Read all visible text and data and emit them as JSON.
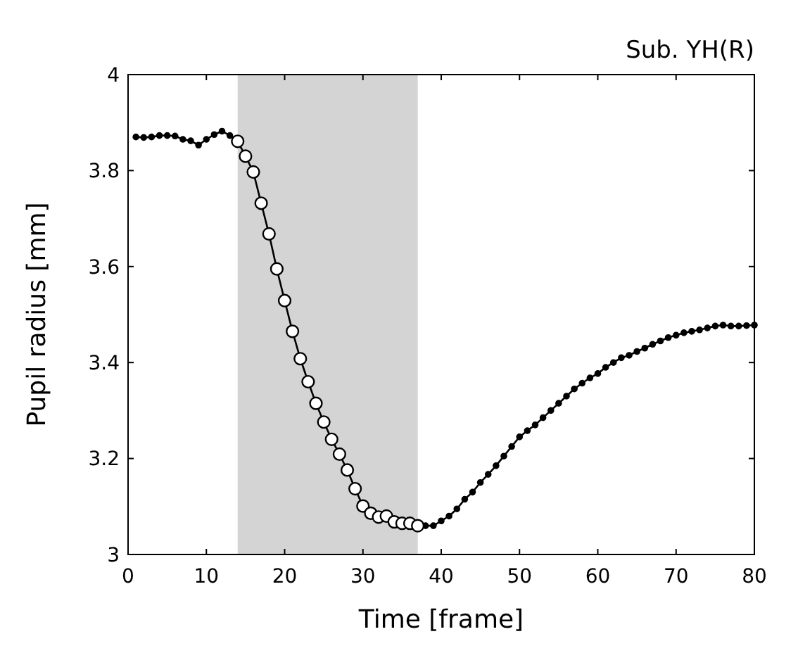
{
  "chart_data": {
    "type": "line",
    "title": "Sub. YH(R)",
    "xlabel": "Time [frame]",
    "ylabel": "Pupil radius [mm]",
    "xlim": [
      0,
      80
    ],
    "xticks": [
      0,
      10,
      20,
      30,
      40,
      50,
      60,
      70,
      80
    ],
    "ylim": [
      3,
      4
    ],
    "yticks": [
      3,
      3.2,
      3.4,
      3.6,
      3.8,
      4
    ],
    "bands": [
      {
        "axis": "x",
        "from": 14,
        "to": 37,
        "color": "#d4d4d4"
      }
    ],
    "series": [
      {
        "color": "#000000",
        "marker": "none",
        "x": [
          1,
          2,
          3,
          4,
          5,
          6,
          7,
          8,
          9,
          10,
          11,
          12,
          13,
          14,
          15,
          16,
          17,
          18,
          19,
          20,
          21,
          22,
          23,
          24,
          25,
          26,
          27,
          28,
          29,
          30,
          31,
          32,
          33,
          34,
          35,
          36,
          37,
          38,
          39,
          40,
          41,
          42,
          43,
          44,
          45,
          46,
          47,
          48,
          49,
          50,
          51,
          52,
          53,
          54,
          55,
          56,
          57,
          58,
          59,
          60,
          61,
          62,
          63,
          64,
          65,
          66,
          67,
          68,
          69,
          70,
          71,
          72,
          73,
          74,
          75,
          76,
          77,
          78,
          79,
          80
        ],
        "values": [
          3.87,
          3.869,
          3.87,
          3.873,
          3.873,
          3.872,
          3.865,
          3.862,
          3.853,
          3.865,
          3.875,
          3.882,
          3.873,
          3.861,
          3.83,
          3.797,
          3.732,
          3.668,
          3.595,
          3.529,
          3.465,
          3.408,
          3.36,
          3.315,
          3.276,
          3.24,
          3.209,
          3.176,
          3.137,
          3.101,
          3.086,
          3.078,
          3.08,
          3.068,
          3.065,
          3.065,
          3.06,
          3.06,
          3.06,
          3.07,
          3.08,
          3.095,
          3.115,
          3.13,
          3.15,
          3.167,
          3.185,
          3.205,
          3.225,
          3.245,
          3.258,
          3.27,
          3.285,
          3.3,
          3.315,
          3.33,
          3.345,
          3.357,
          3.368,
          3.377,
          3.39,
          3.4,
          3.41,
          3.415,
          3.423,
          3.43,
          3.438,
          3.445,
          3.452,
          3.457,
          3.462,
          3.465,
          3.468,
          3.472,
          3.476,
          3.478,
          3.476,
          3.476,
          3.477,
          3.478
        ]
      },
      {
        "type": "scatter",
        "color": "#000000",
        "marker": "circle",
        "x": [
          1,
          2,
          3,
          4,
          5,
          6,
          7,
          8,
          9,
          10,
          11,
          12,
          13,
          38,
          39,
          40,
          41,
          42,
          43,
          44,
          45,
          46,
          47,
          48,
          49,
          50,
          51,
          52,
          53,
          54,
          55,
          56,
          57,
          58,
          59,
          60,
          61,
          62,
          63,
          64,
          65,
          66,
          67,
          68,
          69,
          70,
          71,
          72,
          73,
          74,
          75,
          76,
          77,
          78,
          79,
          80
        ],
        "values": [
          3.87,
          3.869,
          3.87,
          3.873,
          3.873,
          3.872,
          3.865,
          3.862,
          3.853,
          3.865,
          3.875,
          3.882,
          3.873,
          3.06,
          3.06,
          3.07,
          3.08,
          3.095,
          3.115,
          3.13,
          3.15,
          3.167,
          3.185,
          3.205,
          3.225,
          3.245,
          3.258,
          3.27,
          3.285,
          3.3,
          3.315,
          3.33,
          3.345,
          3.357,
          3.368,
          3.377,
          3.39,
          3.4,
          3.41,
          3.415,
          3.423,
          3.43,
          3.438,
          3.445,
          3.452,
          3.457,
          3.462,
          3.465,
          3.468,
          3.472,
          3.476,
          3.478,
          3.476,
          3.476,
          3.477,
          3.478
        ]
      },
      {
        "type": "scatter",
        "color": "#ffffff",
        "marker": "circle",
        "x": [
          14,
          15,
          16,
          17,
          18,
          19,
          20,
          21,
          22,
          23,
          24,
          25,
          26,
          27,
          28,
          29,
          30,
          31,
          32,
          33,
          34,
          35,
          36,
          37
        ],
        "values": [
          3.861,
          3.83,
          3.797,
          3.732,
          3.668,
          3.595,
          3.529,
          3.465,
          3.408,
          3.36,
          3.315,
          3.276,
          3.24,
          3.209,
          3.176,
          3.137,
          3.101,
          3.086,
          3.078,
          3.08,
          3.068,
          3.065,
          3.065,
          3.06
        ]
      }
    ],
    "grid": false
  }
}
